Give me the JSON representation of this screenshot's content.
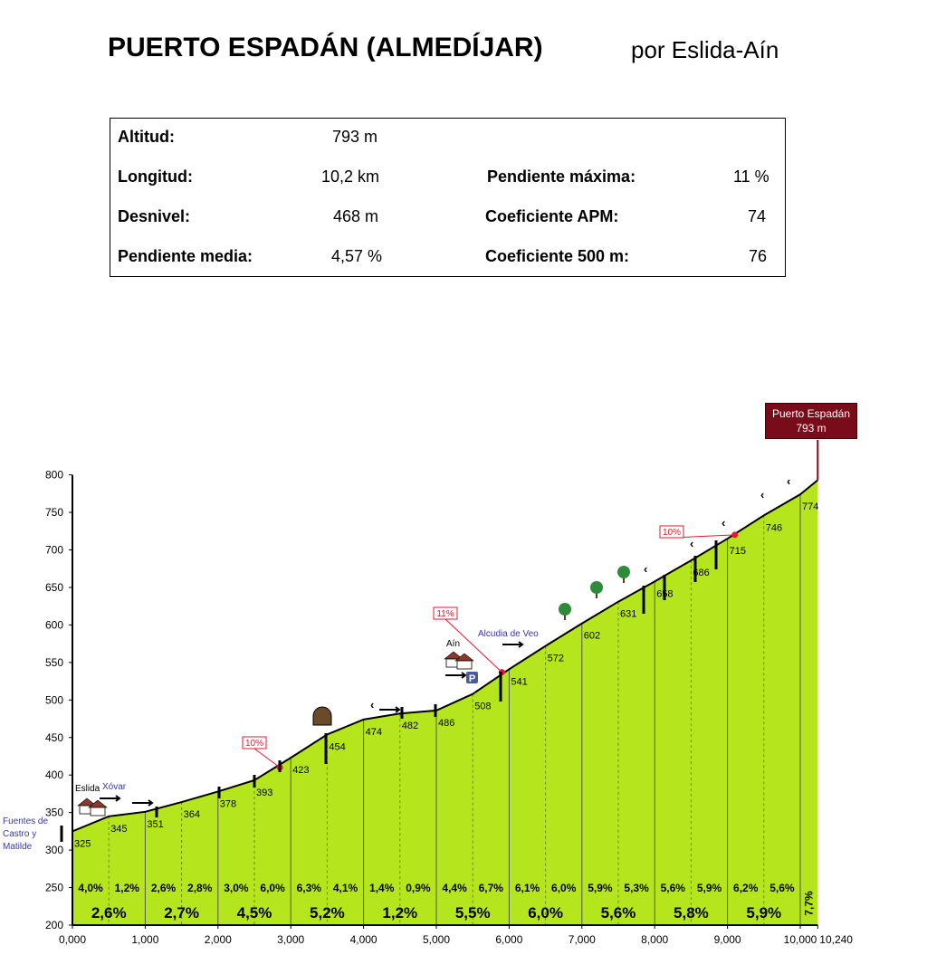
{
  "title": "PUERTO ESPADÁN (ALMEDÍJAR)",
  "subtitle": "por Eslida-Aín",
  "stats": {
    "altitud_label": "Altitud:",
    "altitud_value": "793 m",
    "longitud_label": "Longitud:",
    "longitud_value": "10,2 km",
    "desnivel_label": "Desnivel:",
    "desnivel_value": "468 m",
    "pendiente_media_label": "Pendiente media:",
    "pendiente_media_value": "4,57 %",
    "pendiente_maxima_label": "Pendiente máxima:",
    "pendiente_maxima_value": "11 %",
    "apm_label": "Coeficiente APM:",
    "apm_value": "74",
    "c500_label": "Coeficiente 500 m:",
    "c500_value": "76"
  },
  "summit": {
    "name": "Puerto Espadán",
    "altitude": "793 m"
  },
  "colors": {
    "fill": "#b5e61d",
    "line": "#000000",
    "summit": "#7a0b1a",
    "steep": "#e8182f",
    "place": "#3a3aa0"
  },
  "chart_data": {
    "type": "area",
    "xlim": [
      0,
      10.24
    ],
    "ylim": [
      200,
      800
    ],
    "x_ticks": [
      0,
      1,
      2,
      3,
      4,
      5,
      6,
      7,
      8,
      9,
      10,
      10.24
    ],
    "x_tick_labels": [
      "0,000",
      "1,000",
      "2,000",
      "3,000",
      "4,000",
      "5,000",
      "6,000",
      "7,000",
      "8,000",
      "9,000",
      "10,000",
      "10,240"
    ],
    "y_ticks": [
      200,
      250,
      300,
      350,
      400,
      450,
      500,
      550,
      600,
      650,
      700,
      750,
      800
    ],
    "y_tick_labels": [
      "200",
      "250",
      "300",
      "350",
      "400",
      "450",
      "500",
      "550",
      "600",
      "650",
      "700",
      "750",
      "800"
    ],
    "x": [
      0,
      0.5,
      1,
      1.5,
      2,
      2.5,
      3,
      3.5,
      4,
      4.5,
      5,
      5.5,
      6,
      6.5,
      7,
      7.5,
      8,
      8.5,
      9,
      9.5,
      10,
      10.24
    ],
    "elevation": [
      325,
      345,
      351,
      364,
      378,
      393,
      423,
      454,
      474,
      482,
      486,
      508,
      541,
      572,
      602,
      631,
      658,
      686,
      715,
      746,
      774,
      793
    ],
    "point_labels": [
      "325",
      "345",
      "351",
      "364",
      "378",
      "393",
      "423",
      "454",
      "474",
      "482",
      "486",
      "508",
      "541",
      "572",
      "602",
      "631",
      "658",
      "686",
      "715",
      "746",
      "774"
    ],
    "segment_gradients_500m": [
      "4,0%",
      "1,2%",
      "2,6%",
      "2,8%",
      "3,0%",
      "6,0%",
      "6,3%",
      "4,1%",
      "1,4%",
      "0,9%",
      "4,4%",
      "6,7%",
      "6,1%",
      "6,0%",
      "5,9%",
      "5,3%",
      "5,6%",
      "5,9%",
      "6,2%",
      "5,6%"
    ],
    "segment_gradients_1km": [
      "2,6%",
      "2,7%",
      "4,5%",
      "5,2%",
      "1,2%",
      "5,5%",
      "6,0%",
      "5,6%",
      "5,8%",
      "5,9%"
    ],
    "last_segment_gradient": "7,7%",
    "steep_markers": [
      {
        "label": "10%",
        "x": 2.85,
        "elev": 410
      },
      {
        "label": "11%",
        "x": 5.9,
        "elev": 537
      },
      {
        "label": "10%",
        "x": 9.1,
        "elev": 720
      }
    ],
    "places": [
      {
        "name": "Fuentes de",
        "x": 0,
        "elev": 325
      },
      {
        "name": "Castro y",
        "x": 0,
        "elev": 325
      },
      {
        "name": "Matilde",
        "x": 0,
        "elev": 325
      },
      {
        "name": "Eslida",
        "x": 0.2,
        "elev": 338
      },
      {
        "name": "Xóvar",
        "x": 0.6,
        "elev": 346
      },
      {
        "name": "Aín",
        "x": 5.25,
        "elev": 497
      },
      {
        "name": "Alcudia de Veo",
        "x": 5.8,
        "elev": 535
      }
    ]
  }
}
